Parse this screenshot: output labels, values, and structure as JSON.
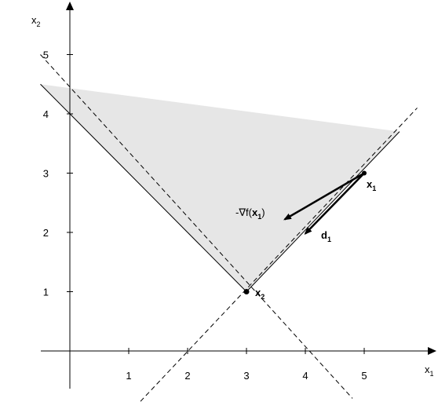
{
  "axes": {
    "x_label": "x",
    "x_sub": "1",
    "y_label": "x",
    "y_sub": "2",
    "x_ticks": [
      "1",
      "2",
      "3",
      "4",
      "5"
    ],
    "y_ticks": [
      "1",
      "2",
      "3",
      "4",
      "5"
    ]
  },
  "feasible_region": {
    "color": "#e6e6e6",
    "vertices": [
      [
        -0.5,
        4.5
      ],
      [
        5.6,
        3.7
      ],
      [
        3,
        1
      ]
    ]
  },
  "lines": [
    {
      "name": "x1+x2=4",
      "from": [
        -0.5,
        5.0
      ],
      "to": [
        4.8,
        -0.8
      ]
    },
    {
      "name": "x2=x1-2",
      "from": [
        1.2,
        -0.85
      ],
      "to": [
        5.9,
        4.1
      ]
    }
  ],
  "points": {
    "x1": {
      "label": "x",
      "sub": "1",
      "coord": [
        5,
        3
      ]
    },
    "x2": {
      "label": "x",
      "sub": "2",
      "coord": [
        3,
        1
      ]
    }
  },
  "vectors": {
    "neg_grad": {
      "label_prefix": "-∇f(",
      "label_var": "x",
      "label_sub": "1",
      "label_suffix": ")",
      "from": [
        5,
        3
      ],
      "to": [
        3.65,
        2.22
      ]
    },
    "d1": {
      "label": "d",
      "sub": "1",
      "from": [
        5,
        3
      ],
      "to": [
        4.0,
        1.98
      ]
    }
  }
}
